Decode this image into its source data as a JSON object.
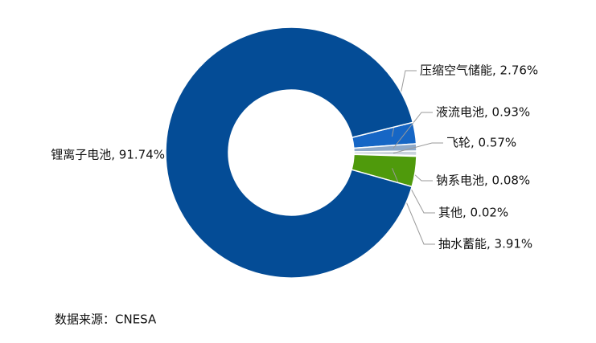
{
  "chart_data": {
    "type": "donut",
    "values": [
      2.76,
      0.93,
      0.57,
      0.08,
      0.02,
      3.91,
      91.74
    ],
    "value_labels": [
      "压缩空气储能, 2.76%",
      "液流电池, 0.93%",
      "飞轮, 0.57%",
      "钠系电池, 0.08%",
      "其他, 0.02%",
      "抽水蓄能, 3.91%",
      "锂离子电池, 91.74%"
    ],
    "colors": [
      "#1666c5",
      "#8fa9c9",
      "#c9d2dc",
      "#c3e09a",
      "#e3e8c8",
      "#4f9a0c",
      "#044c96"
    ],
    "source": "数据来源：CNESA"
  }
}
